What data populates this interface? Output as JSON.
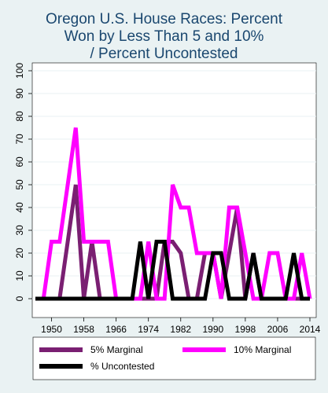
{
  "chart_data": {
    "type": "line",
    "title_lines": [
      "Oregon U.S. House Races: Percent",
      "Won by Less Than 5 and 10%",
      "/ Percent Uncontested"
    ],
    "xlabel": "",
    "ylabel": "",
    "x_ticks": [
      1950,
      1958,
      1966,
      1974,
      1982,
      1990,
      1998,
      2006,
      2014
    ],
    "y_ticks": [
      0,
      10,
      20,
      30,
      40,
      50,
      60,
      70,
      80,
      90,
      100
    ],
    "xlim": [
      1946,
      2014
    ],
    "ylim": [
      -5,
      100
    ],
    "grid": "horizontal",
    "legend_position": "bottom",
    "x": [
      1946,
      1948,
      1950,
      1952,
      1954,
      1956,
      1958,
      1960,
      1962,
      1964,
      1966,
      1968,
      1970,
      1972,
      1974,
      1976,
      1978,
      1980,
      1982,
      1984,
      1986,
      1988,
      1990,
      1992,
      1994,
      1996,
      1998,
      2000,
      2002,
      2004,
      2006,
      2008,
      2010,
      2012,
      2014
    ],
    "series": [
      {
        "name": "5% Marginal",
        "color": "#7a1f72",
        "values": [
          0,
          0,
          0,
          0,
          25,
          50,
          0,
          25,
          0,
          0,
          0,
          0,
          0,
          0,
          0,
          0,
          25,
          25,
          20,
          0,
          0,
          20,
          20,
          0,
          20,
          40,
          0,
          20,
          0,
          0,
          0,
          0,
          0,
          0,
          0
        ]
      },
      {
        "name": "10% Marginal",
        "color": "#ff00ff",
        "values": [
          0,
          0,
          25,
          25,
          50,
          75,
          25,
          25,
          25,
          25,
          0,
          0,
          0,
          0,
          25,
          0,
          0,
          50,
          40,
          40,
          20,
          20,
          20,
          0,
          40,
          40,
          20,
          0,
          0,
          20,
          20,
          0,
          0,
          20,
          0
        ]
      },
      {
        "name": "% Uncontested",
        "color": "#000000",
        "values": [
          0,
          0,
          0,
          0,
          0,
          0,
          0,
          0,
          0,
          0,
          0,
          0,
          0,
          25,
          0,
          25,
          25,
          0,
          0,
          0,
          0,
          0,
          20,
          20,
          0,
          0,
          0,
          20,
          0,
          0,
          0,
          0,
          20,
          0,
          0
        ]
      }
    ]
  }
}
